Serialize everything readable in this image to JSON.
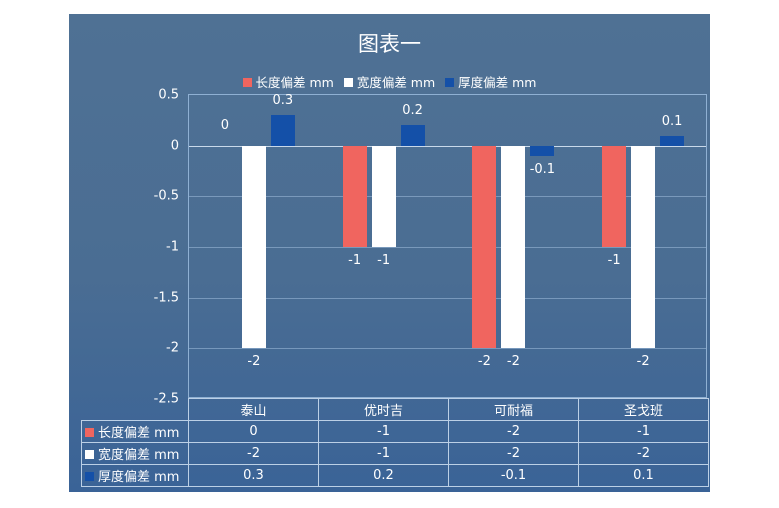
{
  "chart_data": {
    "type": "bar",
    "title": "图表一",
    "categories": [
      "泰山",
      "优时吉",
      "可耐福",
      "圣戈班"
    ],
    "series": [
      {
        "name": "长度偏差 mm",
        "color": "#f0655f",
        "values": [
          0,
          -1,
          -2,
          -1
        ]
      },
      {
        "name": "宽度偏差 mm",
        "color": "#ffffff",
        "values": [
          -2,
          -1,
          -2,
          -2
        ]
      },
      {
        "name": "厚度偏差 mm",
        "color": "#1450a8",
        "values": [
          0.3,
          0.2,
          -0.1,
          0.1
        ]
      }
    ],
    "xlabel": "",
    "ylabel": "",
    "ylim": [
      -2.5,
      0.5
    ],
    "yticks": [
      "0.5",
      "0",
      "-0.5",
      "-1",
      "-1.5",
      "-2",
      "-2.5"
    ],
    "grid": true,
    "legend_position": "top",
    "data_labels": true,
    "data_table": true
  },
  "colors": {
    "background": "#4a6d93",
    "length": "#f0655f",
    "width": "#ffffff",
    "thickness": "#1450a8"
  }
}
